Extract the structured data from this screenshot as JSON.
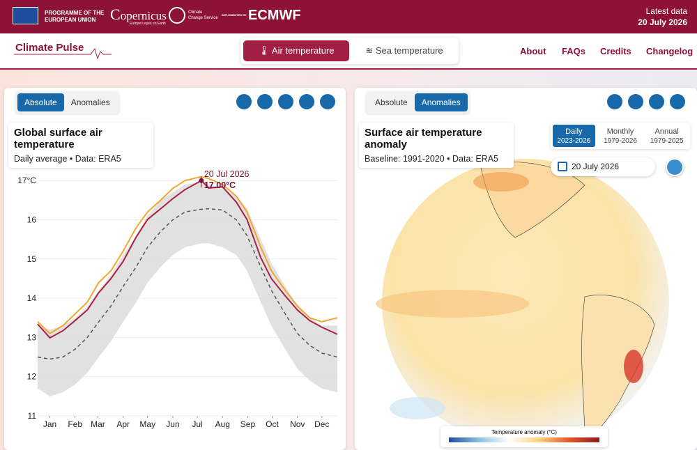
{
  "header": {
    "eu_line1": "PROGRAMME OF THE",
    "eu_line2": "EUROPEAN UNION",
    "copernicus": "opernicus",
    "copernicus_tag": "Europe's eyes on Earth",
    "c3s_line1": "Climate",
    "c3s_line2": "Change Service",
    "implemented": "IMPLEMENTED BY",
    "ecmwf": "ECMWF",
    "latest_label": "Latest data",
    "latest_date": "20 July 2026"
  },
  "nav": {
    "brand": "Climate Pulse",
    "tabs": [
      "Air temperature",
      "Sea temperature"
    ],
    "links": [
      "About",
      "FAQs",
      "Credits",
      "Changelog"
    ]
  },
  "left_panel": {
    "toggles": [
      "Absolute",
      "Anomalies"
    ],
    "title": "Global surface air temperature",
    "subtitle": "Daily average • Data: ERA5"
  },
  "right_panel": {
    "toggles": [
      "Absolute",
      "Anomalies"
    ],
    "title": "Surface air temperature anomaly",
    "subtitle": "Baseline: 1991-2020 • Data: ERA5",
    "periods": [
      {
        "label": "Daily",
        "range": "2023-2026"
      },
      {
        "label": "Monthly",
        "range": "1979-2026"
      },
      {
        "label": "Annual",
        "range": "1979-2025"
      }
    ],
    "date": "20 July 2026",
    "legend_title": "Temperature anomaly (°C)"
  },
  "chart_data": {
    "type": "line",
    "x": [
      0,
      15,
      31,
      46,
      61,
      75,
      90,
      105,
      121,
      135,
      151,
      166,
      181,
      201,
      210,
      227,
      244,
      257,
      274,
      287,
      304,
      319,
      334,
      349,
      368
    ],
    "xlim": [
      0,
      368
    ],
    "xticks": [
      {
        "value": 15,
        "label": "Jan"
      },
      {
        "value": 46,
        "label": "Feb"
      },
      {
        "value": 74,
        "label": "Mar"
      },
      {
        "value": 105,
        "label": "Apr"
      },
      {
        "value": 135,
        "label": "May"
      },
      {
        "value": 166,
        "label": "Jun"
      },
      {
        "value": 196,
        "label": "Jul"
      },
      {
        "value": 227,
        "label": "Aug"
      },
      {
        "value": 258,
        "label": "Sep"
      },
      {
        "value": 288,
        "label": "Oct"
      },
      {
        "value": 319,
        "label": "Nov"
      },
      {
        "value": 349,
        "label": "Dec"
      }
    ],
    "ylim": [
      11,
      17.43
    ],
    "yticks": [
      11,
      12,
      13,
      14,
      15,
      16,
      {
        "value": 17,
        "label": "17°C"
      }
    ],
    "grid": true,
    "series": [
      {
        "style": "band",
        "color": "#d9d9d9",
        "upper": [
          13.3,
          13.2,
          13.3,
          13.5,
          13.8,
          14.2,
          14.6,
          15.1,
          15.6,
          16.1,
          16.5,
          16.7,
          16.9,
          16.95,
          16.9,
          16.8,
          16.6,
          16.3,
          15.5,
          14.9,
          14.3,
          13.8,
          13.5,
          13.3,
          13.3
        ],
        "lower": [
          11.7,
          11.5,
          11.6,
          11.8,
          12.1,
          12.5,
          12.9,
          13.4,
          13.9,
          14.4,
          14.8,
          15.1,
          15.3,
          15.4,
          15.4,
          15.3,
          15.1,
          14.7,
          13.9,
          13.3,
          12.7,
          12.2,
          11.9,
          11.7,
          11.6
        ]
      },
      {
        "style": "dashed",
        "color": "#555555",
        "values": [
          12.5,
          12.45,
          12.5,
          12.7,
          13.0,
          13.4,
          13.8,
          14.3,
          14.8,
          15.3,
          15.7,
          16.0,
          16.2,
          16.27,
          16.28,
          16.25,
          16.0,
          15.6,
          14.8,
          14.2,
          13.6,
          13.1,
          12.8,
          12.6,
          12.5
        ]
      },
      {
        "style": "solid",
        "color": "#f0a832",
        "values": [
          13.4,
          13.1,
          13.3,
          13.6,
          13.9,
          14.4,
          14.7,
          15.2,
          15.8,
          16.2,
          16.5,
          16.8,
          17.0,
          17.1,
          17.05,
          16.9,
          16.6,
          16.2,
          15.3,
          14.7,
          14.2,
          13.8,
          13.5,
          13.4,
          13.5
        ]
      },
      {
        "style": "solid",
        "color": "#a8223f",
        "values": [
          13.34,
          12.99,
          13.17,
          13.43,
          13.7,
          14.14,
          14.5,
          14.94,
          15.56,
          16.01,
          16.28,
          16.54,
          16.77,
          17.0,
          16.81,
          16.84,
          16.45,
          16.01,
          15.03,
          14.5,
          14.06,
          13.7,
          13.43,
          13.26,
          13.08
        ]
      }
    ],
    "annotation": {
      "x": 201,
      "value": 17,
      "date_label": "20 Jul 2026",
      "value_label": "17.00°C"
    }
  }
}
